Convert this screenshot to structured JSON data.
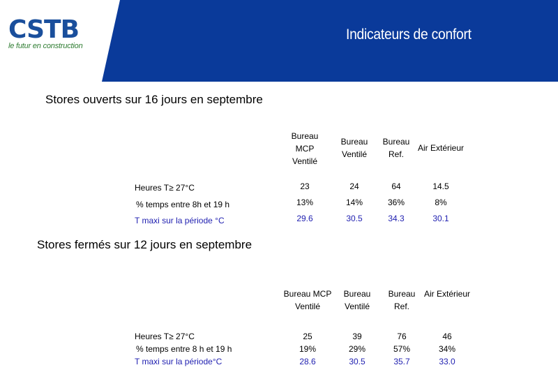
{
  "header": {
    "logo_text": "CSTB",
    "logo_tagline": "le futur en construction",
    "title": "Indicateurs de confort",
    "band_color": "#0a3a9a"
  },
  "section1": {
    "title": "Stores ouverts sur 16 jours en septembre",
    "columns": [
      [
        "Bureau",
        "MCP",
        "Ventilé"
      ],
      [
        "Bureau",
        "Ventilé"
      ],
      [
        "Bureau",
        "Ref."
      ],
      [
        "Air Extérieur"
      ]
    ],
    "rows": [
      {
        "label": "Heures  T≥ 27°C",
        "values": [
          "23",
          "24",
          "64",
          "14.5"
        ]
      },
      {
        "label": "% temps entre 8h et 19 h",
        "values": [
          "13%",
          "14%",
          "36%",
          "8%"
        ]
      },
      {
        "label": "T maxi sur la période  °C",
        "values": [
          "29.6",
          "30.5",
          "34.3",
          "30.1"
        ]
      }
    ]
  },
  "section2": {
    "title": "Stores fermés sur 12 jours en septembre",
    "columns": [
      [
        "Bureau MCP",
        "Ventilé"
      ],
      [
        "Bureau",
        "Ventilé"
      ],
      [
        "Bureau",
        "Ref."
      ],
      [
        "Air Extérieur"
      ]
    ],
    "rows": [
      {
        "label": "Heures T≥ 27°C",
        "values": [
          "25",
          "39",
          "76",
          "46"
        ]
      },
      {
        "label": "% temps entre 8 h et 19 h",
        "values": [
          "19%",
          "29%",
          "57%",
          "34%"
        ]
      },
      {
        "label": "T maxi sur la période°C",
        "values": [
          "28.6",
          "30.5",
          "35.7",
          "33.0"
        ]
      }
    ]
  }
}
